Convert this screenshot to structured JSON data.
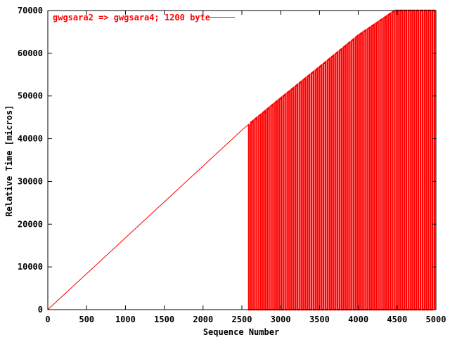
{
  "chart_data": {
    "type": "line",
    "title": "",
    "xlabel": "Sequence Number",
    "ylabel": "Relative Time [micros]",
    "xlim": [
      0,
      5000
    ],
    "ylim": [
      0,
      70000
    ],
    "x_ticks": [
      0,
      500,
      1000,
      1500,
      2000,
      2500,
      3000,
      3500,
      4000,
      4500,
      5000
    ],
    "y_ticks": [
      0,
      10000,
      20000,
      30000,
      40000,
      50000,
      60000,
      70000
    ],
    "x_tick_labels": [
      "0",
      "500",
      "1000",
      "1500",
      "2000",
      "2500",
      "3000",
      "3500",
      "4000",
      "4500",
      "5000"
    ],
    "y_tick_labels": [
      "0",
      "10000",
      "20000",
      "30000",
      "40000",
      "50000",
      "60000",
      "70000"
    ],
    "grid": false,
    "legend_position": "top-left",
    "series": [
      {
        "name": "gwgsara2 => gwgsara4; 1200 byte",
        "color": "#ff0000",
        "x": [
          0,
          500,
          1000,
          1500,
          2000,
          2500,
          2590,
          3000,
          3500,
          4000,
          4470,
          5000
        ],
        "y": [
          0,
          8400,
          16800,
          25200,
          33600,
          42000,
          43400,
          49500,
          56800,
          64200,
          70000,
          70000
        ],
        "oscillation": {
          "x_start": 2590,
          "x_end": 5000,
          "period": 52,
          "low_value": 0,
          "label": "values alternate between the upper envelope and near 0"
        }
      }
    ]
  }
}
